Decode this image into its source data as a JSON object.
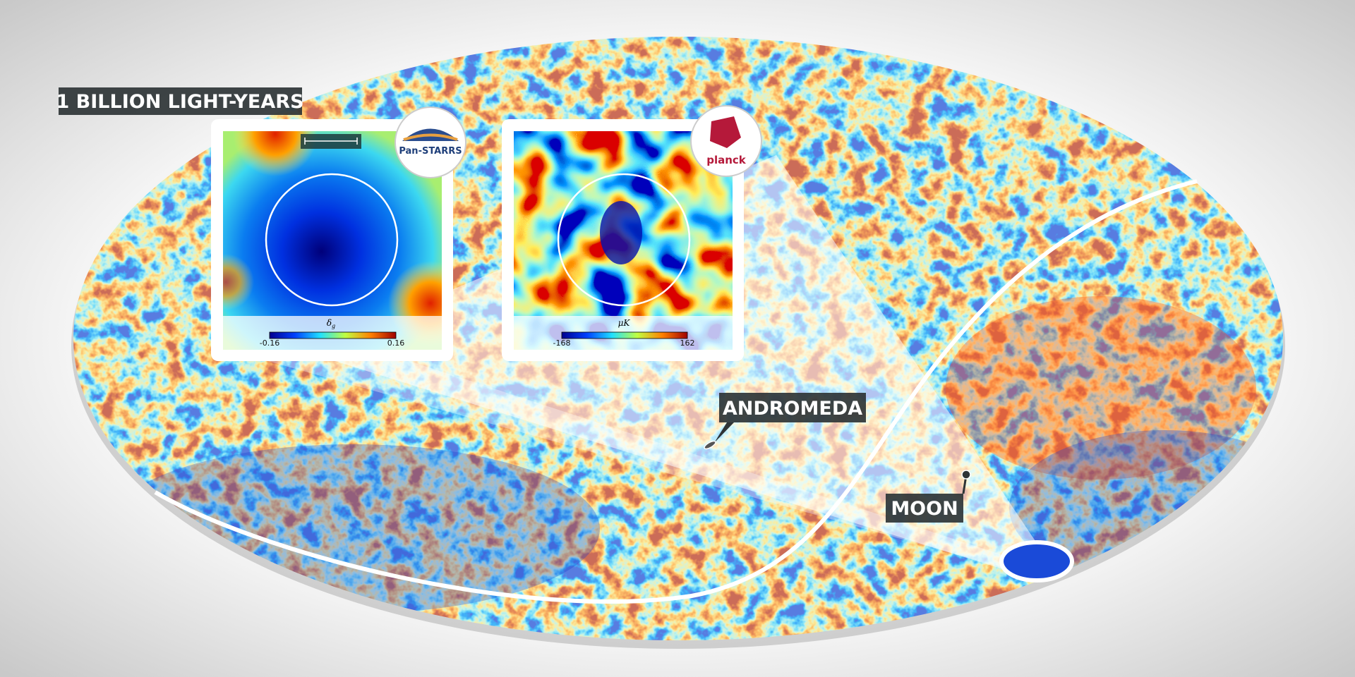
{
  "scale_bar": {
    "label": "1 BILLION LIGHT-YEARS"
  },
  "panels": [
    {
      "logo": "Pan-STARRS",
      "colorbar": {
        "label": "δ",
        "subscript": "g",
        "min": "-0.16",
        "max": "0.16"
      }
    },
    {
      "logo": "planck",
      "colorbar": {
        "label": "μK",
        "min": "-168",
        "max": "162"
      }
    }
  ],
  "annotations": [
    "ANDROMEDA",
    "MOON"
  ]
}
